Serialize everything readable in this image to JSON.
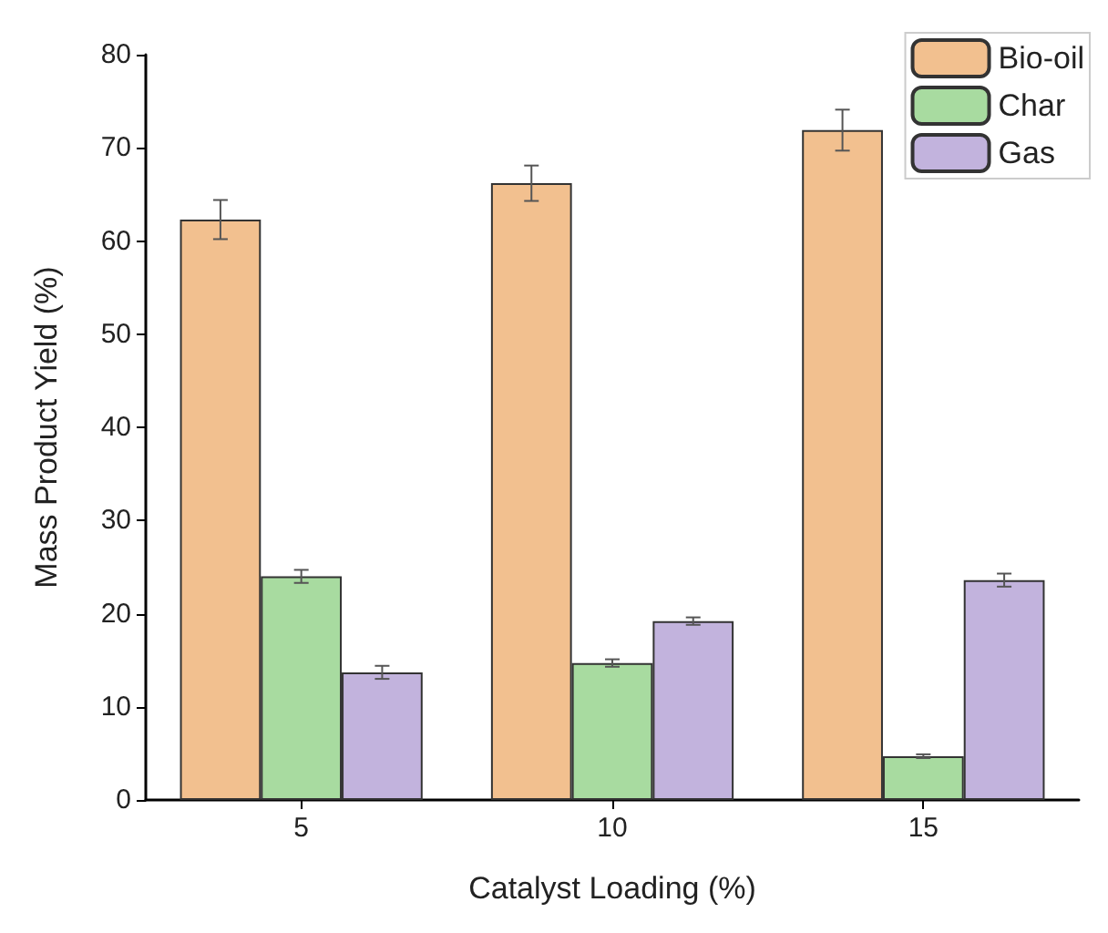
{
  "chart_data": {
    "type": "bar",
    "xlabel": "Catalyst Loading (%)",
    "ylabel": "Mass Product Yield (%)",
    "categories": [
      "5",
      "10",
      "15"
    ],
    "series": [
      {
        "name": "Bio-oil",
        "color": "#f2c08f",
        "values": [
          62.3,
          66.2,
          71.9
        ],
        "errors": [
          2.1,
          1.9,
          2.2
        ]
      },
      {
        "name": "Char",
        "color": "#a8dba0",
        "values": [
          24.0,
          14.7,
          4.7
        ],
        "errors": [
          0.7,
          0.4,
          0.2
        ]
      },
      {
        "name": "Gas",
        "color": "#c2b3dd",
        "values": [
          13.7,
          19.2,
          23.6
        ],
        "errors": [
          0.7,
          0.4,
          0.7
        ]
      }
    ],
    "ylim": [
      0,
      80
    ],
    "yticks": [
      0,
      10,
      20,
      30,
      40,
      50,
      60,
      70,
      80
    ],
    "grid": false,
    "legend": "top right"
  }
}
